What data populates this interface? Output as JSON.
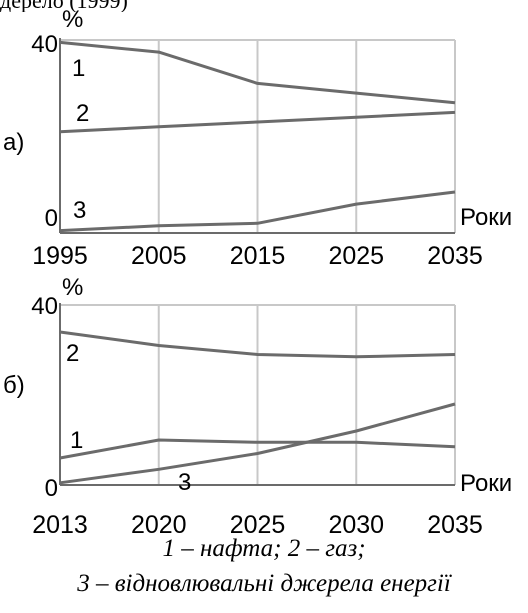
{
  "top_crop_text": "дерело (1999)",
  "captions": {
    "line1": "1 – нафта; 2 – газ;",
    "line2": "3 – відновлювальні джерела енергії"
  },
  "chart_data": [
    {
      "type": "line",
      "panel_label": "а)",
      "ylabel": "%",
      "xlabel": "Роки",
      "x": [
        "1995",
        "2005",
        "2015",
        "2025",
        "2035"
      ],
      "ylim": [
        0,
        40
      ],
      "y_ticks": [
        "0",
        "40"
      ],
      "grid": true,
      "series": [
        {
          "name": "1",
          "values": [
            39.5,
            37.5,
            31,
            29,
            27
          ]
        },
        {
          "name": "2",
          "values": [
            21,
            22,
            23,
            24,
            25
          ]
        },
        {
          "name": "3",
          "values": [
            0.5,
            1.5,
            2,
            6,
            8.5
          ]
        }
      ],
      "colors": {
        "line": "#6b6b6b",
        "grid": "#c8c8c8",
        "axis": "#6b6b6b"
      }
    },
    {
      "type": "line",
      "panel_label": "б)",
      "ylabel": "%",
      "xlabel": "Роки",
      "x": [
        "2013",
        "2020",
        "2025",
        "2030",
        "2035"
      ],
      "ylim": [
        0,
        40
      ],
      "y_ticks": [
        "0",
        "40"
      ],
      "grid": true,
      "series": [
        {
          "name": "2",
          "values": [
            34,
            31,
            29,
            28.5,
            29
          ]
        },
        {
          "name": "1",
          "values": [
            6,
            10,
            9.5,
            9.5,
            8.5
          ]
        },
        {
          "name": "3",
          "values": [
            0.5,
            3.5,
            7,
            12,
            18
          ]
        }
      ],
      "colors": {
        "line": "#6b6b6b",
        "grid": "#c8c8c8",
        "axis": "#6b6b6b"
      }
    }
  ]
}
